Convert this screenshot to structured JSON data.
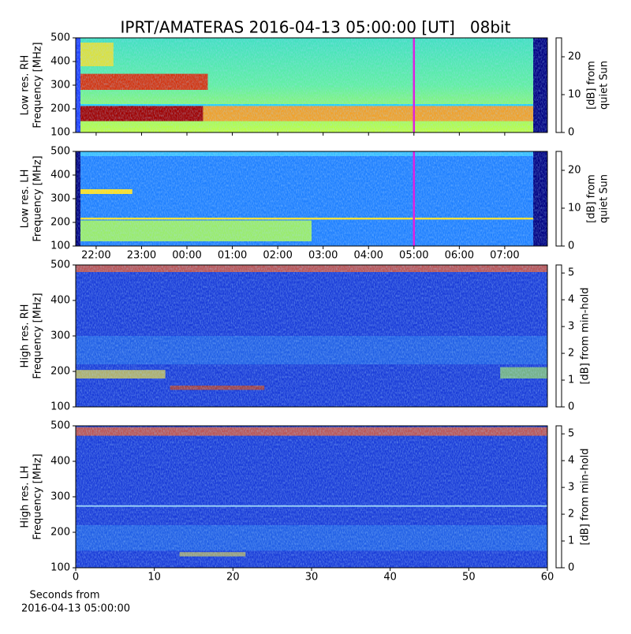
{
  "title": "IPRT/AMATERAS 2016-04-13 05:00:00 [UT]   08bit",
  "chart_data": [
    {
      "type": "spectrogram",
      "ylabel": [
        "Low res. RH",
        "Frequency [MHz]"
      ],
      "ylim": [
        100,
        500
      ],
      "yticks": [
        100,
        200,
        300,
        400,
        500
      ],
      "xlim": [
        21.55,
        31.94
      ],
      "vline": 29,
      "vline_color": "#e020e0",
      "colorbar_label": [
        "[dB] from",
        "quiet Sun"
      ],
      "clim": [
        0,
        25
      ],
      "cticks": [
        0,
        10,
        20
      ]
    },
    {
      "type": "spectrogram",
      "ylabel": [
        "Low res. LH",
        "Frequency [MHz]"
      ],
      "ylim": [
        100,
        500
      ],
      "yticks": [
        100,
        200,
        300,
        400,
        500
      ],
      "xlim": [
        21.55,
        31.94
      ],
      "vline": 29,
      "vline_color": "#e020e0",
      "xticks": [
        {
          "value": 22,
          "label": "22:00"
        },
        {
          "value": 23,
          "label": "23:00"
        },
        {
          "value": 24,
          "label": "00:00"
        },
        {
          "value": 25,
          "label": "01:00"
        },
        {
          "value": 26,
          "label": "02:00"
        },
        {
          "value": 27,
          "label": "03:00"
        },
        {
          "value": 28,
          "label": "04:00"
        },
        {
          "value": 29,
          "label": "05:00"
        },
        {
          "value": 30,
          "label": "06:00"
        },
        {
          "value": 31,
          "label": "07:00"
        }
      ],
      "colorbar_label": [
        "[dB] from",
        "quiet Sun"
      ],
      "clim": [
        0,
        25
      ],
      "cticks": [
        0,
        10,
        20
      ]
    },
    {
      "type": "spectrogram",
      "ylabel": [
        "High res. RH",
        "Frequency [MHz]"
      ],
      "ylim": [
        100,
        500
      ],
      "yticks": [
        100,
        200,
        300,
        400,
        500
      ],
      "xlim": [
        0,
        60
      ],
      "colorbar_label": [
        "[dB] from min-hold"
      ],
      "clim": [
        0,
        5.3
      ],
      "cticks": [
        0,
        1,
        2,
        3,
        4,
        5
      ]
    },
    {
      "type": "spectrogram",
      "ylabel": [
        "High res. LH",
        "Frequency [MHz]"
      ],
      "ylim": [
        100,
        500
      ],
      "yticks": [
        100,
        200,
        300,
        400,
        500
      ],
      "xlim": [
        0,
        60
      ],
      "xticks": [
        0,
        10,
        20,
        30,
        40,
        50,
        60
      ],
      "xlabel": [
        "Seconds from",
        "2016-04-13 05:00:00"
      ],
      "colorbar_label": [
        "[dB] from min-hold"
      ],
      "clim": [
        0,
        5.3
      ],
      "cticks": [
        0,
        1,
        2,
        3,
        4,
        5
      ]
    }
  ]
}
